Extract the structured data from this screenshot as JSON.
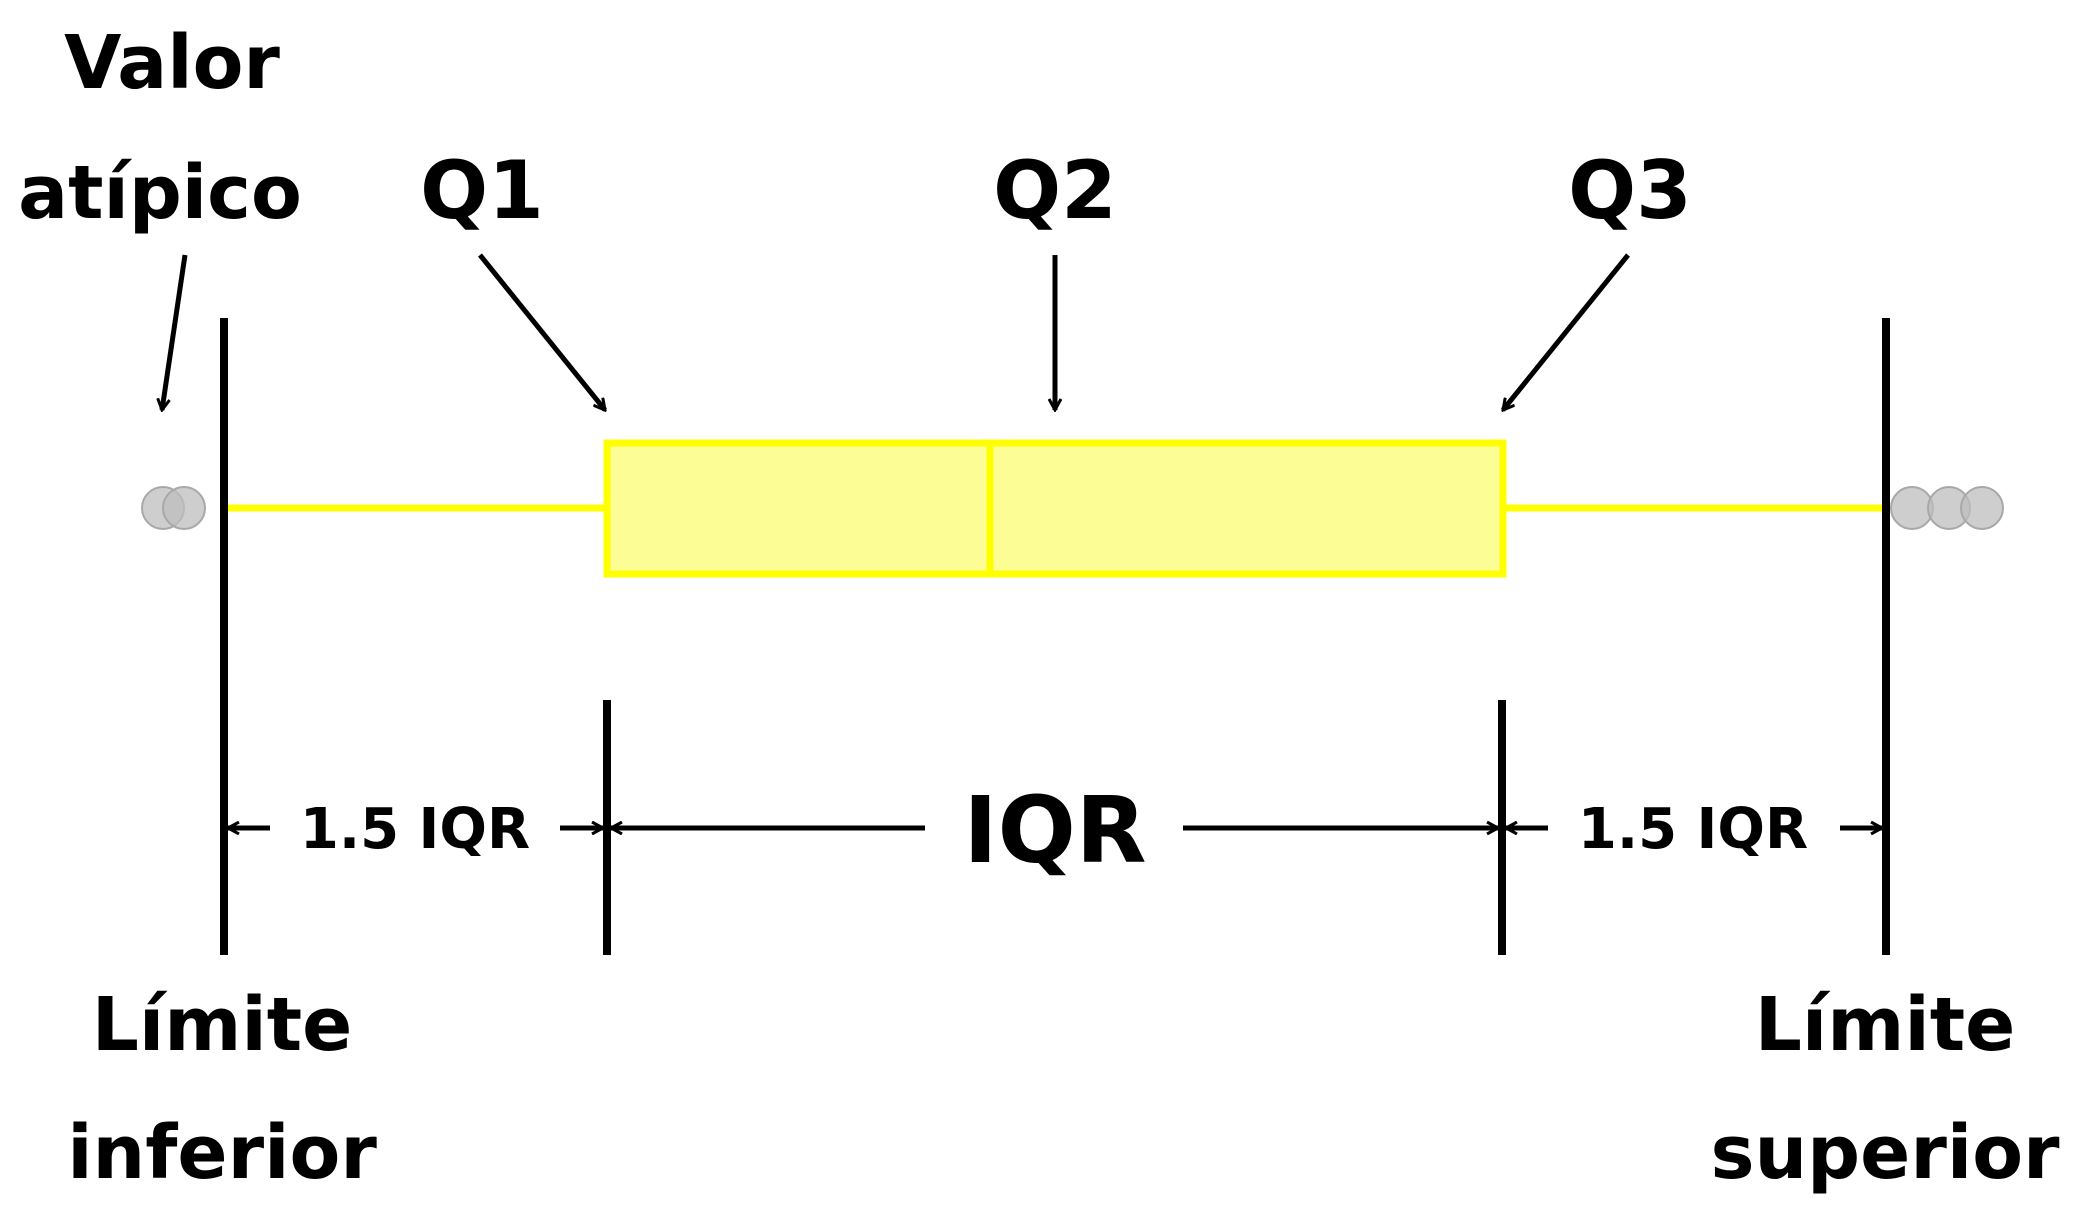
{
  "labels": {
    "outlier_line1": "Valor",
    "outlier_line2": "atípico",
    "q1": "Q1",
    "q2": "Q2",
    "q3": "Q3",
    "iqr": "IQR",
    "left_range": "1.5 IQR",
    "right_range": "1.5 IQR",
    "lower_line1": "Límite",
    "lower_line2": "inferior",
    "upper_line1": "Límite",
    "upper_line2": "superior"
  },
  "colors": {
    "box_fill": "#fdfd95",
    "box_stroke": "#ffff00",
    "whisker": "#ffff00",
    "outlier_fill": "#bdbdbd",
    "ink": "#000000"
  }
}
